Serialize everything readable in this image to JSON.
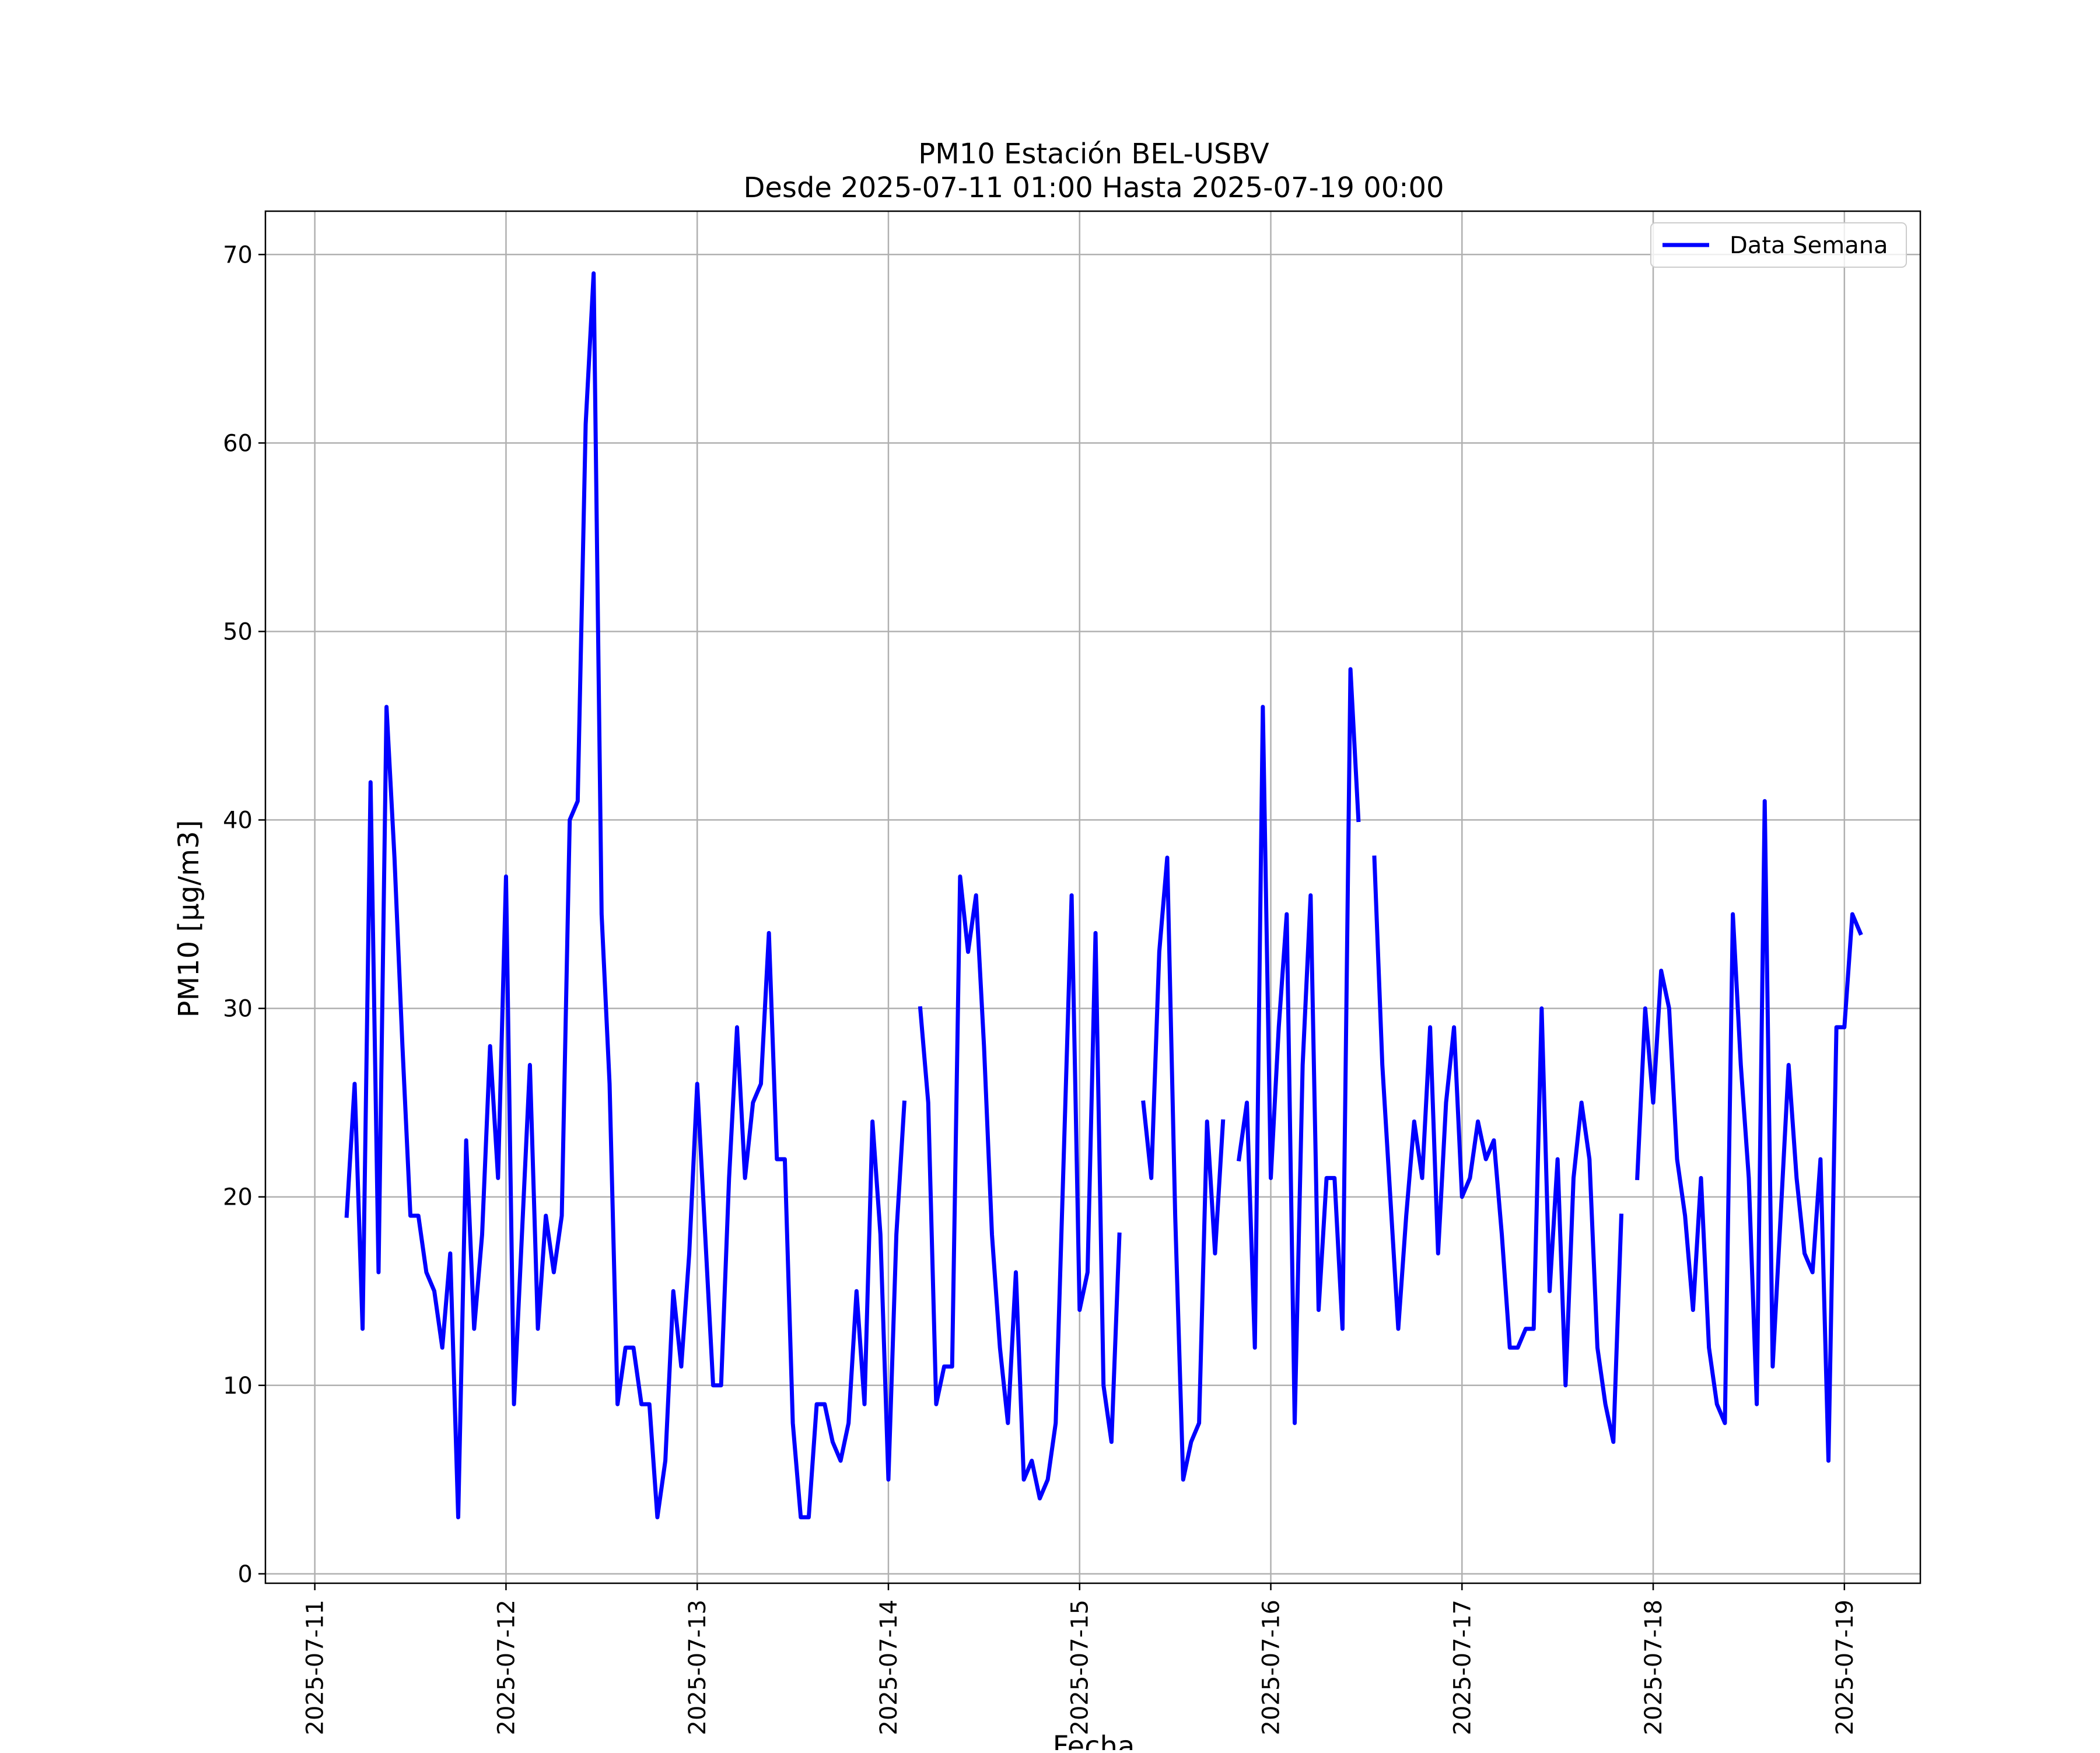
{
  "chart_data": {
    "type": "line",
    "title": "PM10 Estación BEL-USBV",
    "subtitle": "Desde 2025-07-11 01:00 Hasta 2025-07-19 00:00",
    "xlabel": "Fecha",
    "ylabel": "PM10 [μg/m3]",
    "ylim": [
      -0.5,
      72.3
    ],
    "xlim": [
      "2025-07-10 17:48",
      "2025-07-19 09:32"
    ],
    "yticks": [
      "0",
      "10",
      "20",
      "30",
      "40",
      "50",
      "60",
      "70"
    ],
    "xticks": [
      "2025-07-11",
      "2025-07-12",
      "2025-07-13",
      "2025-07-14",
      "2025-07-15",
      "2025-07-16",
      "2025-07-17",
      "2025-07-18",
      "2025-07-19"
    ],
    "grid": true,
    "legend_position": "top-right",
    "series": [
      {
        "name": "Data Semana",
        "color": "#0000ff",
        "start": "2025-07-11 04:00",
        "interval_hours": 1,
        "values": [
          19,
          26,
          13,
          42,
          16,
          46,
          38,
          28,
          19,
          19,
          16,
          15,
          12,
          17,
          3,
          23,
          13,
          18,
          28,
          21,
          37,
          9,
          18,
          27,
          13,
          19,
          16,
          19,
          40,
          41,
          61,
          69,
          35,
          26,
          9,
          12,
          12,
          9,
          9,
          3,
          6,
          15,
          11,
          17,
          26,
          18,
          10,
          10,
          21,
          29,
          21,
          25,
          26,
          34,
          22,
          22,
          8,
          3,
          3,
          9,
          9,
          7,
          6,
          8,
          15,
          9,
          24,
          18,
          5,
          18,
          25,
          null,
          30,
          25,
          9,
          11,
          11,
          37,
          33,
          36,
          28,
          18,
          12,
          8,
          16,
          5,
          6,
          4,
          5,
          8,
          22,
          36,
          14,
          16,
          34,
          10,
          7,
          18,
          null,
          null,
          25,
          21,
          33,
          38,
          19,
          5,
          7,
          8,
          24,
          17,
          24,
          null,
          22,
          25,
          12,
          46,
          21,
          29,
          35,
          8,
          27,
          36,
          14,
          21,
          21,
          13,
          48,
          40,
          null,
          38,
          27,
          20,
          13,
          19,
          24,
          21,
          29,
          17,
          25,
          29,
          20,
          21,
          24,
          22,
          23,
          18,
          12,
          12,
          13,
          13,
          30,
          15,
          22,
          10,
          21,
          25,
          22,
          12,
          9,
          7,
          19,
          null,
          21,
          30,
          25,
          32,
          30,
          22,
          19,
          14,
          21,
          12,
          9,
          8,
          35,
          27,
          21,
          9,
          41,
          11,
          19,
          27,
          21,
          17,
          16,
          22,
          6,
          29,
          29,
          35,
          34
        ]
      }
    ]
  }
}
